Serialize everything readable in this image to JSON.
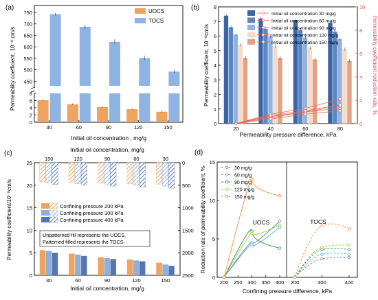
{
  "panels": {
    "a": {
      "tag": "(a)"
    },
    "b": {
      "tag": "(b)"
    },
    "c": {
      "tag": "(c)"
    },
    "d": {
      "tag": "(d)"
    }
  },
  "chart_data": [
    {
      "id": "a",
      "type": "bar",
      "title": "",
      "xlabel": "Initial oil concentration , mg/g",
      "ylabel": "Permeability coefficient, 10⁻⁸ cm/s",
      "categories": [
        "30",
        "60",
        "90",
        "120",
        "150"
      ],
      "series": [
        {
          "name": "UOCS",
          "values": [
            6.1,
            5.0,
            4.2,
            3.6,
            2.9
          ],
          "errors": [
            0.2,
            0.2,
            0.2,
            0.2,
            0.2
          ],
          "color": "#f0a35c"
        },
        {
          "name": "TOCS",
          "values": [
            742,
            687,
            622,
            551,
            492
          ],
          "errors": [
            6,
            9,
            11,
            10,
            8
          ],
          "color": "#8fb4e3"
        }
      ],
      "ylim_lower": [
        0,
        8
      ],
      "ylim_upper": [
        430,
        780
      ],
      "yticks_lower": [
        "0",
        "2",
        "4",
        "6",
        "8"
      ],
      "yticks_upper": [
        "450",
        "500",
        "550",
        "600",
        "650",
        "700",
        "750"
      ],
      "legend_position": "top-right"
    },
    {
      "id": "b",
      "type": "bar",
      "title": "",
      "xlabel": "Permeability pressure difference, kPa",
      "ylabel": "Permeability coefficient, 10⁻⁸cm/s",
      "ylabel_right": "Permeability coefficient reduction rate, %",
      "categories": [
        "20",
        "40",
        "60",
        "80"
      ],
      "series": [
        {
          "name": "Initial oil concentration 30 mg/g",
          "values": [
            7.4,
            7.2,
            7.1,
            6.9
          ],
          "color": "#3a66a8"
        },
        {
          "name": "Initial oil concentration 60 mg/g",
          "values": [
            6.6,
            6.5,
            6.4,
            6.3
          ],
          "color": "#5b86c4"
        },
        {
          "name": "Initial oil concentration 90 mg/g",
          "values": [
            6.1,
            6.0,
            5.9,
            5.8
          ],
          "color": "#93b3de"
        },
        {
          "name": "Initial oil concentration 120 mg/g",
          "values": [
            5.4,
            5.3,
            5.2,
            5.1
          ],
          "color": "#f6dcc8"
        },
        {
          "name": "Initial oil concentration 150 mg/g",
          "values": [
            4.5,
            4.5,
            4.4,
            4.3
          ],
          "color": "#e4a284"
        }
      ],
      "line_series": [
        {
          "name": "Initial oil concentration 30 mg/g",
          "x": [
            20,
            40,
            60,
            80
          ],
          "values": [
            0,
            0.8,
            1.3,
            2.1
          ]
        },
        {
          "name": "Initial oil concentration 60 mg/g",
          "x": [
            20,
            40,
            60,
            80
          ],
          "values": [
            0,
            0.5,
            1.0,
            1.5
          ]
        },
        {
          "name": "Initial oil concentration 90 mg/g",
          "x": [
            20,
            40,
            60,
            80
          ],
          "values": [
            0,
            0.6,
            1.0,
            1.3
          ]
        },
        {
          "name": "Initial oil concentration 120 mg/g",
          "x": [
            20,
            40,
            60,
            80
          ],
          "values": [
            0,
            0.7,
            1.1,
            1.6
          ]
        },
        {
          "name": "Initial oil concentration 150 mg/g",
          "x": [
            20,
            40,
            60,
            80
          ],
          "values": [
            0,
            0.4,
            0.8,
            1.1
          ]
        }
      ],
      "ylim": [
        0,
        8
      ],
      "ylim_right": [
        0,
        10
      ],
      "yticks": [
        "0",
        "1",
        "2",
        "3",
        "4",
        "5",
        "6",
        "7",
        "8"
      ],
      "yticks_right": [
        "0",
        "2",
        "4",
        "6",
        "8",
        "10"
      ],
      "legend_position": "top"
    },
    {
      "id": "c",
      "type": "bar",
      "title": "",
      "xlabel": "Initial oil concentration, mg/g",
      "xlabel_top": "Initial oil concentration, mg/g",
      "ylabel": "Permeability coefficient/10⁻⁸cm/s",
      "categories": [
        "30",
        "60",
        "90",
        "120",
        "150"
      ],
      "categories_top": [
        "150",
        "120",
        "90",
        "60",
        "30"
      ],
      "series": [
        {
          "name": "Confining pressure 200 kPa",
          "values": [
            5.6,
            4.8,
            4.0,
            3.5,
            2.8
          ],
          "color": "#f0a35c"
        },
        {
          "name": "Confining pressure 300 kPa",
          "values": [
            5.4,
            4.6,
            3.8,
            3.3,
            2.4
          ],
          "color": "#8fb0da"
        },
        {
          "name": "Confining pressure 400 kPa",
          "values": [
            5.0,
            4.3,
            3.6,
            3.1,
            2.1
          ],
          "color": "#5575b3"
        }
      ],
      "series_top": [
        {
          "name": "Confining pressure 200 kPa",
          "values": [
            420,
            440,
            455,
            465,
            475
          ]
        },
        {
          "name": "Confining pressure 300 kPa",
          "values": [
            450,
            470,
            490,
            500,
            520
          ]
        },
        {
          "name": "Confining pressure 400 kPa",
          "values": [
            480,
            500,
            520,
            540,
            565
          ]
        }
      ],
      "ylim": [
        0,
        25
      ],
      "ylim_right": [
        2500,
        0
      ],
      "yticks": [
        "0",
        "5",
        "10",
        "15",
        "20",
        "25"
      ],
      "yticks_right": [
        "0",
        "500",
        "1000",
        "1500",
        "2000",
        "2500"
      ],
      "note": [
        "Unpatterned fill represents the UOCS,",
        "Patterned filled represents the TOCS."
      ],
      "legend_position": "center-left"
    },
    {
      "id": "d",
      "type": "line",
      "title": "",
      "xlabel": "Confining pressure difference, kPa",
      "ylabel": "Reduction rate of permeability coefficient, %",
      "region_labels": [
        "UOCS",
        "TOCS"
      ],
      "xticks_left": [
        "200",
        "250",
        "300",
        "350",
        "400"
      ],
      "xticks_right": [
        "200",
        "300",
        "400"
      ],
      "series": [
        {
          "name": "30 mg/g",
          "color": "#5b86c4",
          "uocs": [
            [
              200,
              0
            ],
            [
              300,
              4.5
            ],
            [
              400,
              7.3
            ]
          ],
          "tocs": [
            [
              200,
              0
            ],
            [
              300,
              2.4
            ],
            [
              400,
              2.6
            ]
          ]
        },
        {
          "name": "60 mg/g",
          "color": "#4fa6c8",
          "uocs": [
            [
              200,
              0
            ],
            [
              300,
              4.2
            ],
            [
              400,
              6.5
            ]
          ],
          "tocs": [
            [
              200,
              0
            ],
            [
              300,
              3.0
            ],
            [
              400,
              3.0
            ]
          ]
        },
        {
          "name": "90 mg/g",
          "color": "#2e8b57",
          "uocs": [
            [
              200,
              0
            ],
            [
              300,
              6.0
            ],
            [
              400,
              3.8
            ]
          ],
          "tocs": [
            [
              200,
              0
            ],
            [
              300,
              3.6
            ],
            [
              400,
              3.6
            ]
          ]
        },
        {
          "name": "120 mg/g",
          "color": "#9acd32",
          "uocs": [
            [
              200,
              0
            ],
            [
              300,
              5.7
            ],
            [
              400,
              6.8
            ]
          ],
          "tocs": [
            [
              200,
              0
            ],
            [
              300,
              3.9
            ],
            [
              400,
              4.2
            ]
          ]
        },
        {
          "name": "150 mg/g",
          "color": "#ff8c3a",
          "uocs": [
            [
              200,
              0
            ],
            [
              300,
              12.8
            ],
            [
              400,
              10.6
            ]
          ],
          "tocs": [
            [
              200,
              0
            ],
            [
              300,
              6.7
            ],
            [
              400,
              6.3
            ]
          ]
        }
      ],
      "ylim": [
        0,
        15
      ],
      "yticks": [
        "0",
        "5",
        "10",
        "15"
      ],
      "legend_position": "top-left"
    }
  ]
}
